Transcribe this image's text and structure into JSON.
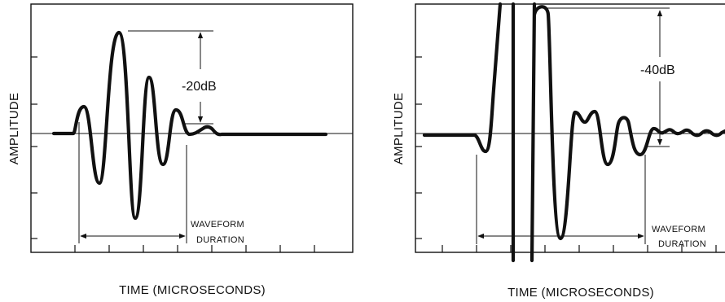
{
  "panels": [
    {
      "x_label": "TIME (MICROSECONDS)",
      "y_label": "AMPLITUDE",
      "level_label": "-20dB",
      "duration_label_line1": "WAVEFORM",
      "duration_label_line2": "DURATION"
    },
    {
      "x_label": "TIME (MICROSECONDS)",
      "y_label": "AMPLITUDE",
      "level_label": "-40dB",
      "duration_label_line1": "WAVEFORM",
      "duration_label_line2": "DURATION"
    }
  ]
}
